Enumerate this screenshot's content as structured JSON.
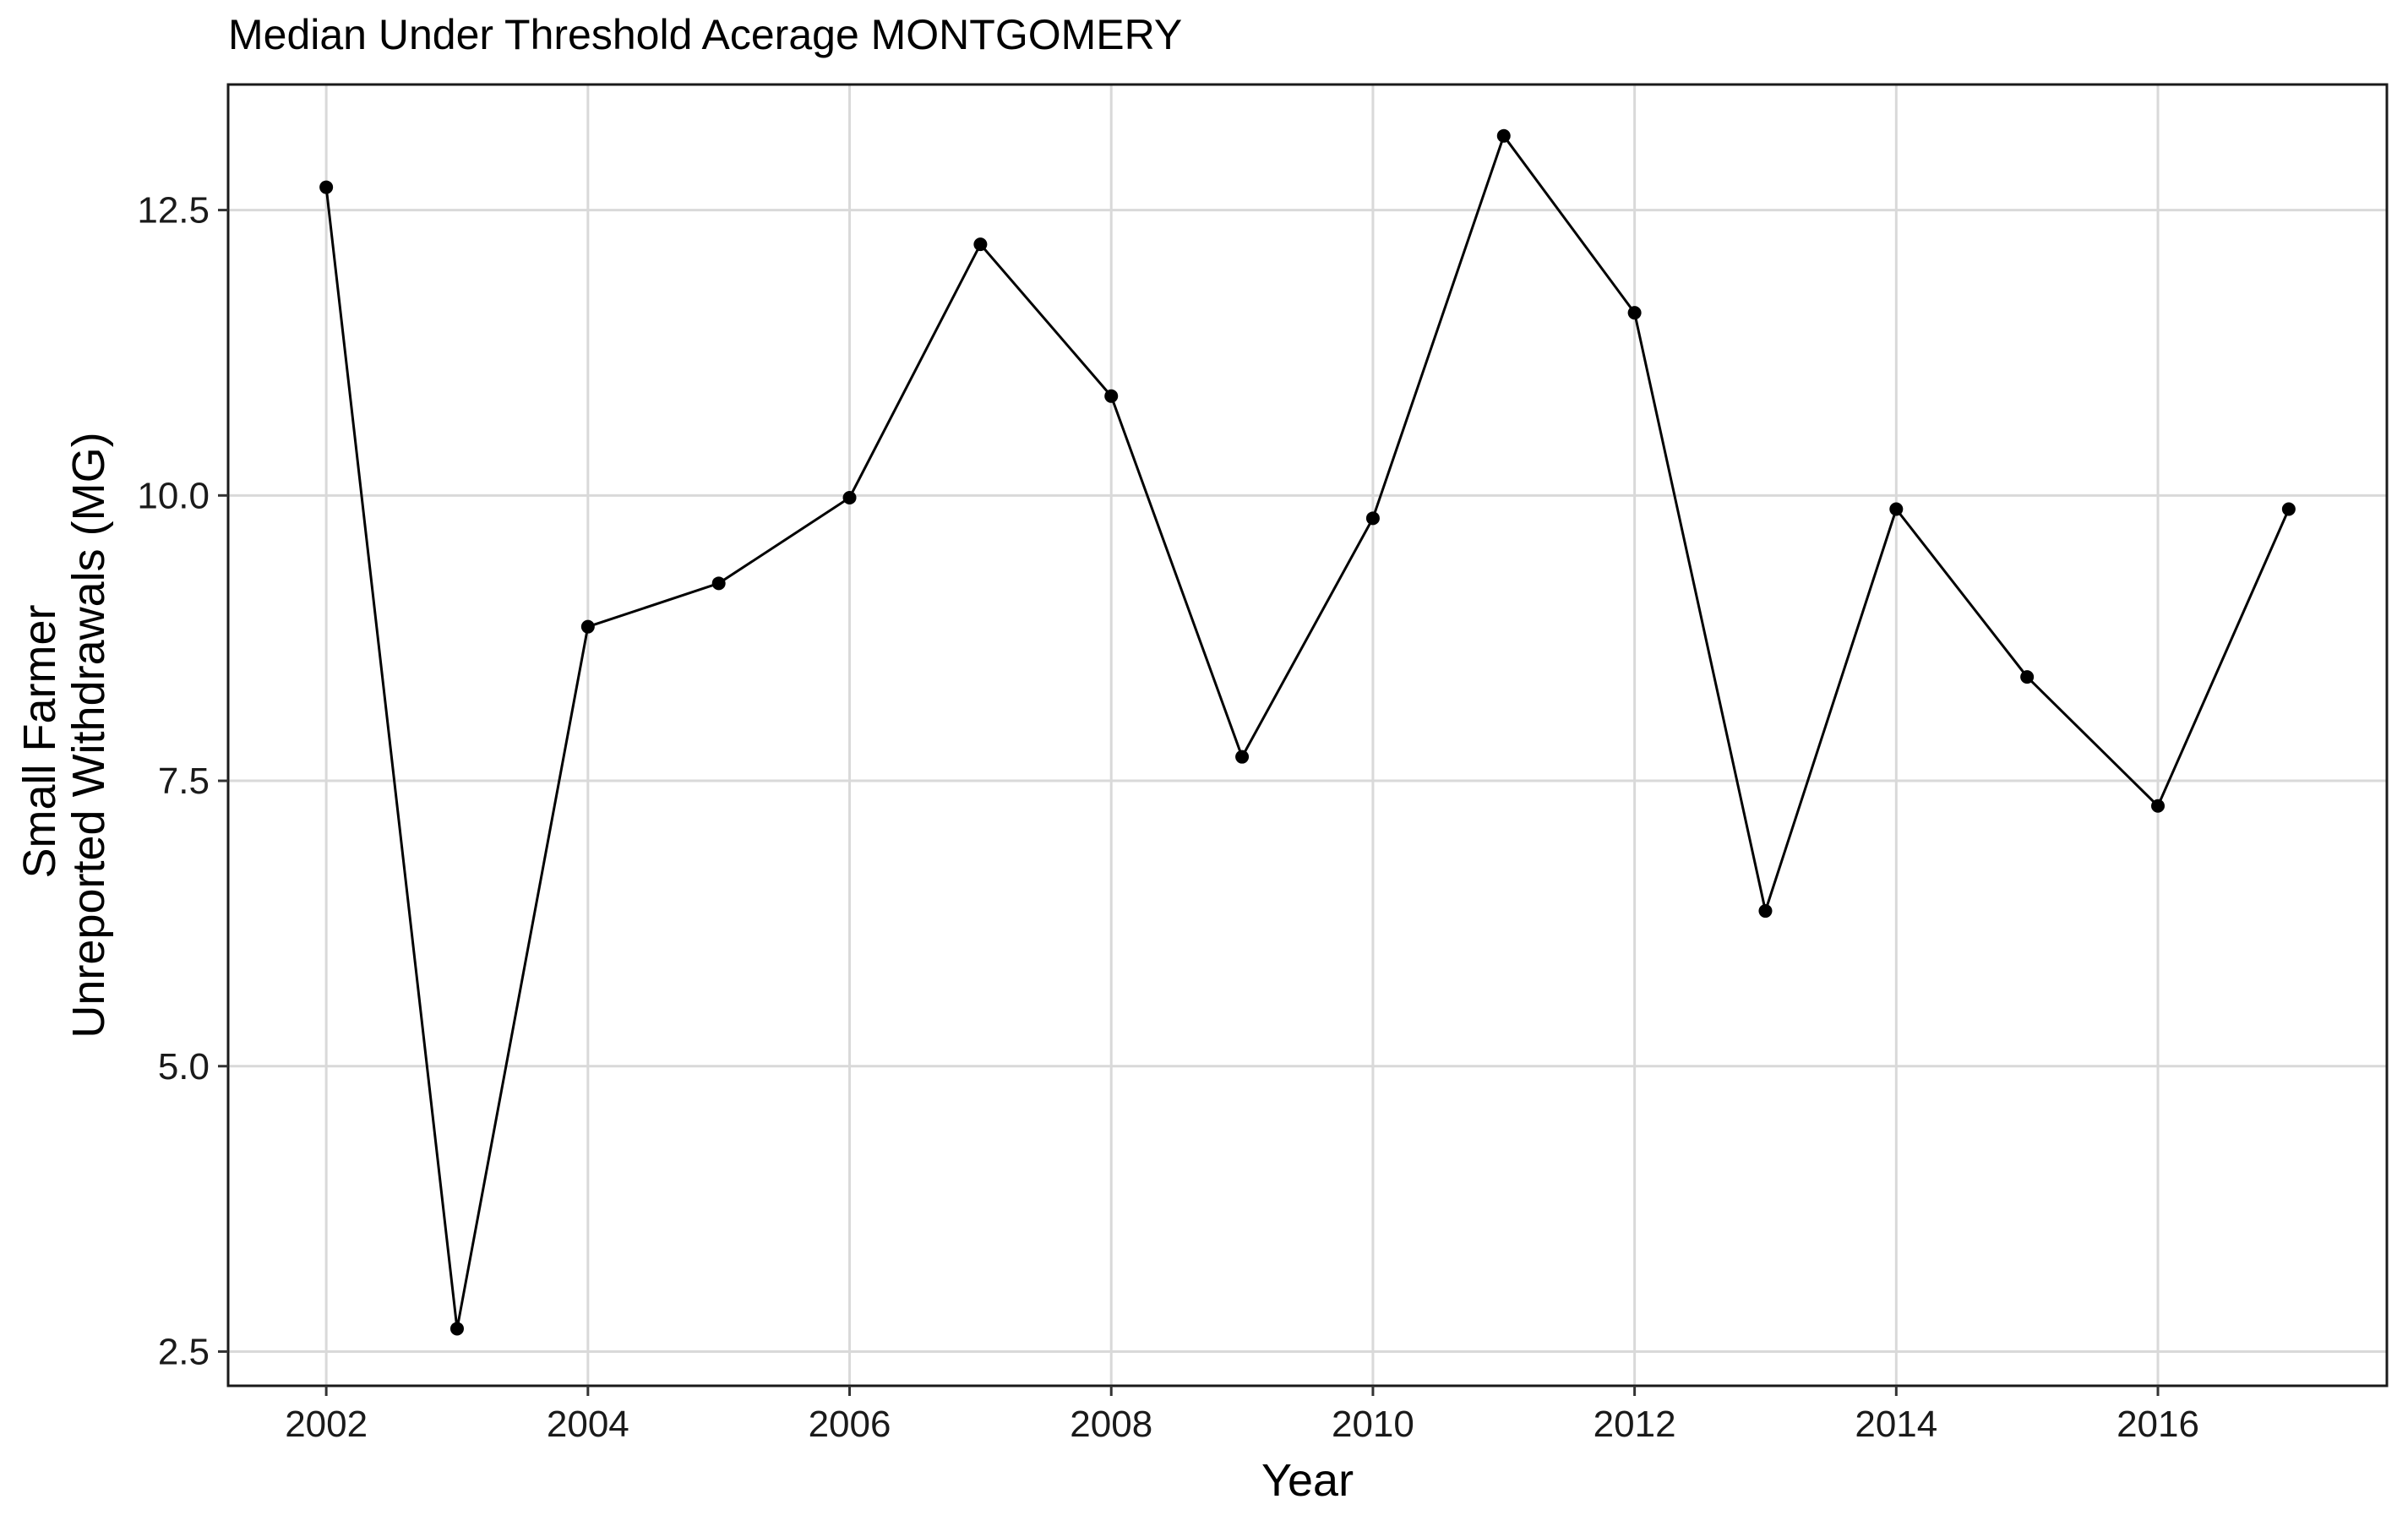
{
  "chart_data": {
    "type": "line",
    "title": "Median Under Threshold Acerage MONTGOMERY",
    "xlabel": "Year",
    "ylabel_lines": [
      "Small Farmer",
      "Unreported Withdrawals (MG)"
    ],
    "xlim": [
      2001.25,
      2017.75
    ],
    "ylim": [
      2.2,
      13.6
    ],
    "x_ticks": [
      2002,
      2004,
      2006,
      2008,
      2010,
      2012,
      2014,
      2016
    ],
    "y_ticks": [
      2.5,
      5.0,
      7.5,
      10.0,
      12.5
    ],
    "y_tick_labels": [
      "2.5",
      "5.0",
      "7.5",
      "10.0",
      "12.5"
    ],
    "grid": true,
    "series": [
      {
        "color": "#000000",
        "points": [
          {
            "x": 2002.0,
            "y": 12.7
          },
          {
            "x": 2003.0,
            "y": 2.7
          },
          {
            "x": 2004.0,
            "y": 8.85
          },
          {
            "x": 2005.0,
            "y": 9.23
          },
          {
            "x": 2006.0,
            "y": 9.98
          },
          {
            "x": 2007.0,
            "y": 12.2
          },
          {
            "x": 2008.0,
            "y": 10.87
          },
          {
            "x": 2009.0,
            "y": 7.71
          },
          {
            "x": 2010.0,
            "y": 9.8
          },
          {
            "x": 2011.0,
            "y": 13.15
          },
          {
            "x": 2012.0,
            "y": 11.6
          },
          {
            "x": 2013.0,
            "y": 6.36
          },
          {
            "x": 2014.0,
            "y": 9.88
          },
          {
            "x": 2015.0,
            "y": 8.41
          },
          {
            "x": 2016.0,
            "y": 7.28
          },
          {
            "x": 2017.0,
            "y": 9.88
          }
        ]
      }
    ]
  }
}
